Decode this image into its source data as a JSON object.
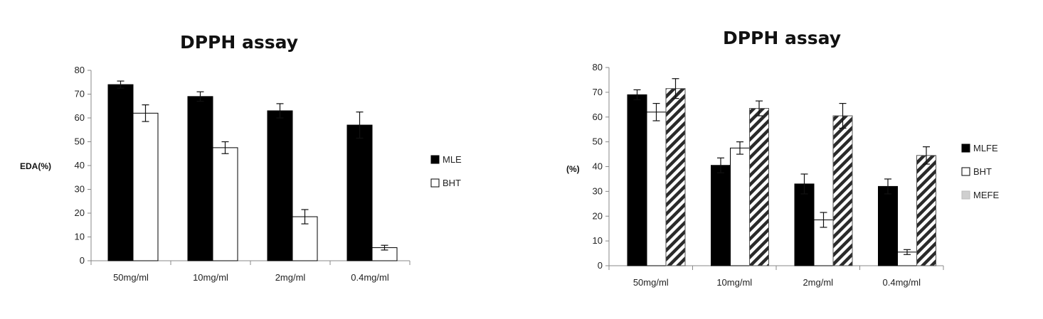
{
  "charts": [
    {
      "type": "bar",
      "title": "DPPH assay",
      "ylabel": "EDA(%)",
      "xlabel": "",
      "ylim": [
        0,
        80
      ],
      "yticks": [
        0,
        10,
        20,
        30,
        40,
        50,
        60,
        70,
        80
      ],
      "categories": [
        "50mg/ml",
        "10mg/ml",
        "2mg/ml",
        "0.4mg/ml"
      ],
      "legend_position": "right",
      "series": [
        {
          "name": "MLE",
          "values": [
            74,
            69,
            63,
            57
          ],
          "errors": [
            1.5,
            2,
            3,
            5.5
          ],
          "color": "#000000",
          "style": "solid"
        },
        {
          "name": "BHT",
          "values": [
            62,
            47.5,
            18.5,
            5.5
          ],
          "errors": [
            3.5,
            2.5,
            3,
            1
          ],
          "color": "#ffffff",
          "style": "outline"
        }
      ]
    },
    {
      "type": "bar",
      "title": "DPPH assay",
      "ylabel": "(%)",
      "xlabel": "",
      "ylim": [
        0,
        80
      ],
      "yticks": [
        0,
        10,
        20,
        30,
        40,
        50,
        60,
        70,
        80
      ],
      "categories": [
        "50mg/ml",
        "10mg/ml",
        "2mg/ml",
        "0.4mg/ml"
      ],
      "legend_position": "right",
      "series": [
        {
          "name": "MLFE",
          "values": [
            69,
            40.5,
            33,
            32
          ],
          "errors": [
            2,
            3,
            4,
            3
          ],
          "color": "#000000",
          "style": "solid"
        },
        {
          "name": "BHT",
          "values": [
            62,
            47.5,
            18.5,
            5.5
          ],
          "errors": [
            3.5,
            2.5,
            3,
            1
          ],
          "color": "#ffffff",
          "style": "outline"
        },
        {
          "name": "MEFE",
          "values": [
            71.5,
            63.5,
            60.5,
            44.5
          ],
          "errors": [
            4,
            3,
            5,
            3.5
          ],
          "color": "#333333",
          "style": "hatched"
        }
      ]
    }
  ]
}
